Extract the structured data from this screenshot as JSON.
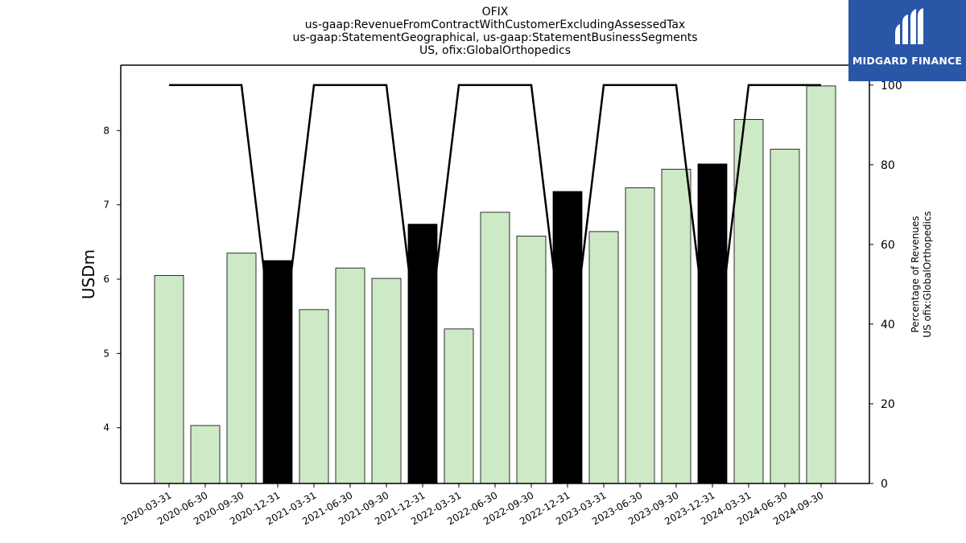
{
  "title": {
    "line1": "OFIX",
    "line2": "us-gaap:RevenueFromContractWithCustomerExcludingAssessedTax",
    "line3": "us-gaap:StatementGeographical, us-gaap:StatementBusinessSegments",
    "line4": "US, ofix:GlobalOrthopedics"
  },
  "logo": {
    "text": "MIDGARD FINANCE",
    "bg_color": "#2a56a8"
  },
  "chart_data": {
    "type": "bar",
    "categories": [
      "2020-03-31",
      "2020-06-30",
      "2020-09-30",
      "2020-12-31",
      "2021-03-31",
      "2021-06-30",
      "2021-09-30",
      "2021-12-31",
      "2022-03-31",
      "2022-06-30",
      "2022-09-30",
      "2022-12-31",
      "2023-03-31",
      "2023-06-30",
      "2023-09-30",
      "2023-12-31",
      "2024-03-31",
      "2024-06-30",
      "2024-09-30"
    ],
    "values": [
      6.05,
      4.03,
      6.35,
      6.25,
      5.59,
      6.15,
      6.01,
      6.74,
      5.33,
      6.9,
      6.58,
      7.18,
      6.64,
      7.23,
      7.48,
      7.55,
      8.15,
      7.75,
      8.6
    ],
    "highlight": [
      false,
      false,
      false,
      true,
      false,
      false,
      false,
      true,
      false,
      false,
      false,
      true,
      false,
      false,
      false,
      true,
      false,
      false,
      false
    ],
    "bar_color": "#cde9c6",
    "highlight_color": "#000000",
    "ylabel": "USDm",
    "ylim": [
      3.25,
      8.88
    ],
    "yticks": [
      4,
      5,
      6,
      7,
      8
    ],
    "secondary": {
      "type": "line",
      "values": [
        100,
        100,
        100,
        25,
        100,
        100,
        100,
        25,
        100,
        100,
        100,
        25,
        100,
        100,
        100,
        25,
        100,
        100,
        100
      ],
      "ylabel_line1": "Percentage of Revenues",
      "ylabel_line2": "US ofix:GlobalOrthopedics",
      "ylim": [
        0,
        105
      ],
      "yticks": [
        0,
        20,
        40,
        60,
        80,
        100
      ],
      "color": "#000000"
    }
  }
}
